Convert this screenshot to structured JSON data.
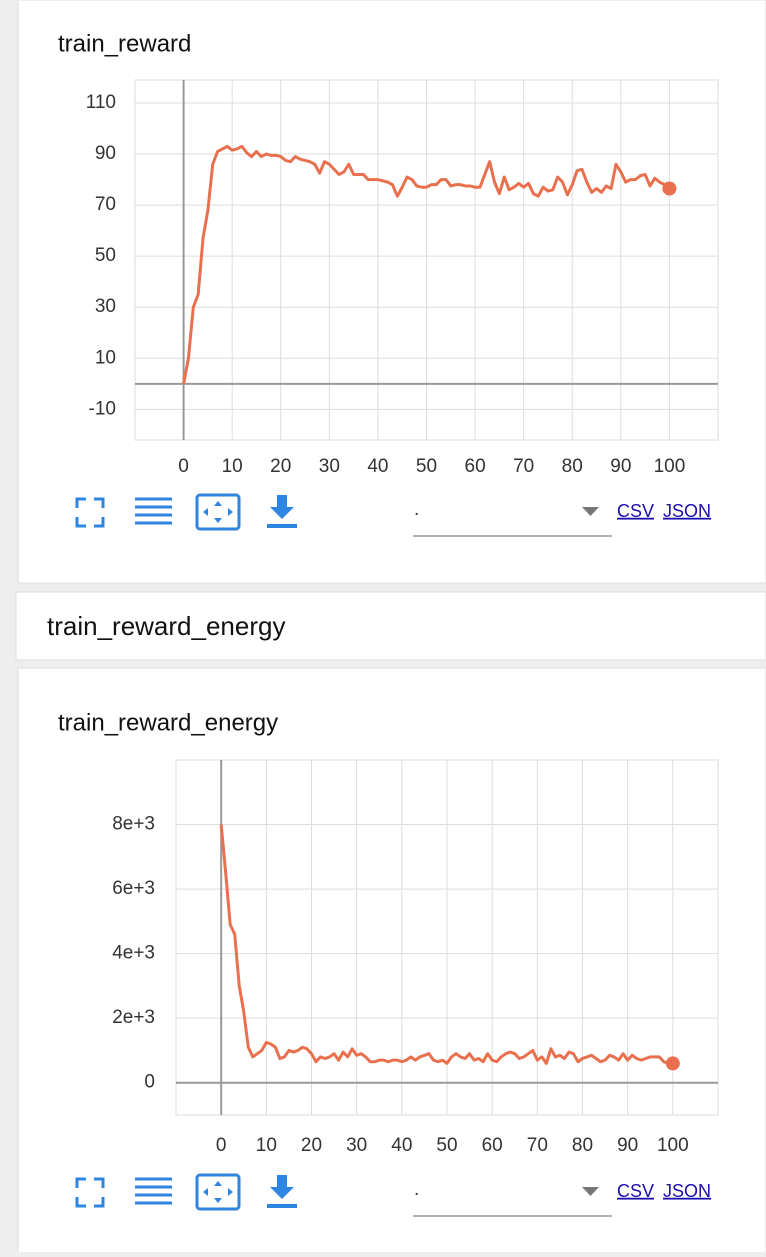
{
  "section_title": "train_reward_energy",
  "chart_data": [
    {
      "type": "line",
      "title": "train_reward",
      "color": "#e8704e",
      "grid": true,
      "x": [
        0,
        1,
        2,
        3,
        4,
        5,
        6,
        7,
        8,
        9,
        10,
        11,
        12,
        13,
        14,
        15,
        16,
        17,
        18,
        19,
        20,
        21,
        22,
        23,
        24,
        25,
        26,
        27,
        28,
        29,
        30,
        31,
        32,
        33,
        34,
        35,
        36,
        37,
        38,
        39,
        40,
        41,
        42,
        43,
        44,
        45,
        46,
        47,
        48,
        49,
        50,
        51,
        52,
        53,
        54,
        55,
        56,
        57,
        58,
        59,
        60,
        61,
        62,
        63,
        64,
        65,
        66,
        67,
        68,
        69,
        70,
        71,
        72,
        73,
        74,
        75,
        76,
        77,
        78,
        79,
        80,
        81,
        82,
        83,
        84,
        85,
        86,
        87,
        88,
        89,
        90,
        91,
        92,
        93,
        94,
        95,
        96,
        97,
        98,
        99,
        100
      ],
      "series": [
        {
          "values": [
            0,
            10,
            30,
            35,
            57,
            68,
            86,
            91,
            92,
            93,
            91.5,
            92,
            93,
            90.5,
            89,
            91,
            89,
            90,
            89.5,
            89.5,
            89,
            87.5,
            87,
            89,
            88,
            87.5,
            87,
            86,
            82.5,
            87,
            86,
            84,
            82,
            83,
            86,
            82,
            82,
            82,
            80,
            80,
            80,
            79.5,
            79,
            78,
            73.5,
            77,
            81,
            80,
            77.5,
            77,
            77,
            78,
            78,
            80,
            80,
            77.5,
            78,
            78,
            77.5,
            77.5,
            77,
            77,
            82,
            87,
            79,
            74.5,
            81,
            76,
            77,
            78.5,
            77,
            78.5,
            74.5,
            73.5,
            77,
            75.5,
            76,
            81,
            79,
            74,
            78,
            83.5,
            84,
            79,
            75,
            76.5,
            75,
            77.5,
            76.5,
            86,
            83,
            79,
            80,
            80,
            81.5,
            82,
            77.5,
            80.5,
            79,
            78,
            76.5
          ]
        }
      ],
      "xlim": [
        -10,
        110
      ],
      "xticks": [
        0,
        10,
        20,
        30,
        40,
        50,
        60,
        70,
        80,
        90,
        100
      ],
      "ylim": [
        -22,
        119
      ],
      "yticks": [
        -10,
        10,
        30,
        50,
        70,
        90,
        110
      ],
      "run_select": ".",
      "links": [
        "CSV",
        "JSON"
      ]
    },
    {
      "type": "line",
      "title": "train_reward_energy",
      "color": "#e8704e",
      "grid": true,
      "x": [
        0,
        1,
        2,
        3,
        4,
        5,
        6,
        7,
        8,
        9,
        10,
        11,
        12,
        13,
        14,
        15,
        16,
        17,
        18,
        19,
        20,
        21,
        22,
        23,
        24,
        25,
        26,
        27,
        28,
        29,
        30,
        31,
        32,
        33,
        34,
        35,
        36,
        37,
        38,
        39,
        40,
        41,
        42,
        43,
        44,
        45,
        46,
        47,
        48,
        49,
        50,
        51,
        52,
        53,
        54,
        55,
        56,
        57,
        58,
        59,
        60,
        61,
        62,
        63,
        64,
        65,
        66,
        67,
        68,
        69,
        70,
        71,
        72,
        73,
        74,
        75,
        76,
        77,
        78,
        79,
        80,
        81,
        82,
        83,
        84,
        85,
        86,
        87,
        88,
        89,
        90,
        91,
        92,
        93,
        94,
        95,
        96,
        97,
        98,
        99,
        100
      ],
      "series": [
        {
          "values": [
            8000,
            6500,
            4900,
            4600,
            3000,
            2200,
            1100,
            800,
            900,
            1000,
            1250,
            1200,
            1100,
            750,
            800,
            1000,
            950,
            1000,
            1100,
            1050,
            900,
            650,
            800,
            750,
            800,
            900,
            700,
            950,
            800,
            1050,
            850,
            900,
            800,
            650,
            650,
            700,
            700,
            650,
            700,
            700,
            650,
            700,
            800,
            700,
            800,
            850,
            900,
            700,
            650,
            700,
            600,
            800,
            900,
            800,
            750,
            900,
            700,
            750,
            650,
            900,
            700,
            650,
            800,
            900,
            950,
            900,
            750,
            800,
            900,
            1000,
            700,
            800,
            600,
            1050,
            800,
            850,
            750,
            950,
            900,
            650,
            750,
            800,
            850,
            750,
            650,
            700,
            850,
            800,
            700,
            900,
            700,
            850,
            750,
            700,
            750,
            800,
            800,
            800,
            650,
            600,
            600
          ]
        }
      ],
      "xlim": [
        -10,
        110
      ],
      "xticks": [
        0,
        10,
        20,
        30,
        40,
        50,
        60,
        70,
        80,
        90,
        100
      ],
      "ylim": [
        -1000,
        10000
      ],
      "yticks": [
        0,
        {
          "value": 2000,
          "label": "2e+3"
        },
        {
          "value": 4000,
          "label": "4e+3"
        },
        {
          "value": 6000,
          "label": "6e+3"
        },
        {
          "value": 8000,
          "label": "8e+3"
        }
      ],
      "run_select": ".",
      "links": [
        "CSV",
        "JSON"
      ]
    }
  ]
}
